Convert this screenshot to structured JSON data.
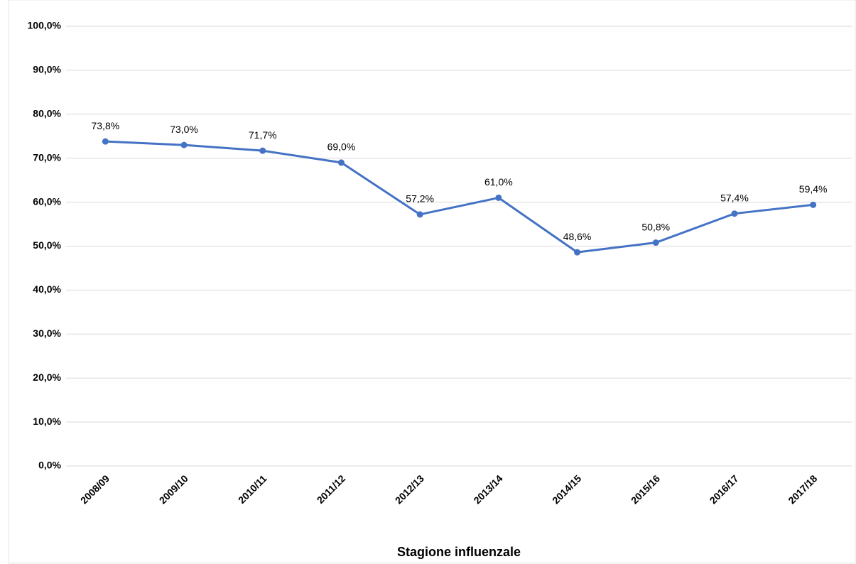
{
  "chart_data": {
    "type": "line",
    "x_label": "Stagione influenzale",
    "categories": [
      "2008/09",
      "2009/10",
      "2010/11",
      "2011/12",
      "2012/13",
      "2013/14",
      "2014/15",
      "2015/16",
      "2016/17",
      "2017/18"
    ],
    "series": [
      {
        "color": "#4472c4",
        "values": [
          73.8,
          73.0,
          71.7,
          69.0,
          57.2,
          61.0,
          48.6,
          50.8,
          57.4,
          59.4
        ],
        "value_labels": [
          "73,8%",
          "73,0%",
          "71,7%",
          "69,0%",
          "57,2%",
          "61,0%",
          "48,6%",
          "50,8%",
          "57,4%",
          "59,4%"
        ]
      }
    ],
    "ylim": [
      0,
      100
    ],
    "yticks": [
      {
        "value": 0,
        "label": "0,0%"
      },
      {
        "value": 10,
        "label": "10,0%"
      },
      {
        "value": 20,
        "label": "20,0%"
      },
      {
        "value": 30,
        "label": "30,0%"
      },
      {
        "value": 40,
        "label": "40,0%"
      },
      {
        "value": 50,
        "label": "50,0%"
      },
      {
        "value": 60,
        "label": "60,0%"
      },
      {
        "value": 70,
        "label": "70,0%"
      },
      {
        "value": 80,
        "label": "80,0%"
      },
      {
        "value": 90,
        "label": "90,0%"
      },
      {
        "value": 100,
        "label": "100,0%"
      }
    ],
    "grid": true
  }
}
